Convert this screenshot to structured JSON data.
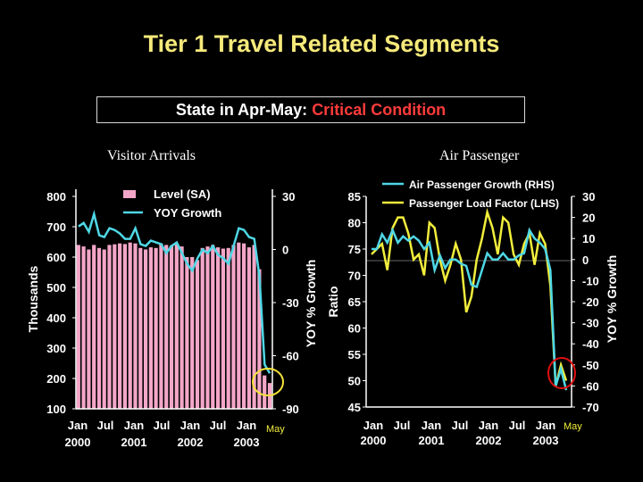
{
  "title": "Tier 1 Travel Related Segments",
  "state": {
    "prefix": "State in Apr-May:",
    "status": "Critical Condition",
    "status_color": "#ff3b3b"
  },
  "colors": {
    "bar": "#f4a6c8",
    "growth": "#4fd7e6",
    "factor": "#f2ee3c",
    "highlight_left": "#f5e23a",
    "highlight_right": "#e01010"
  },
  "chart_data": [
    {
      "type": "bar",
      "panel_title": "Visitor Arrivals",
      "legend": [
        "Level (SA)",
        "YOY Growth"
      ],
      "ylabel": "Thousands",
      "y2label": "YOY % Growth",
      "ylim": [
        100,
        800
      ],
      "y2lim": [
        -90,
        30
      ],
      "yticks": [
        "800",
        "700",
        "600",
        "500",
        "400",
        "300",
        "200",
        "100"
      ],
      "y2ticks": [
        "30",
        "0",
        "-30",
        "-60",
        "-90"
      ],
      "xticks": [
        "Jan",
        "Jul",
        "Jan",
        "Jul",
        "Jan",
        "Jul",
        "Jan"
      ],
      "years": [
        "2000",
        "2001",
        "2002",
        "2003"
      ],
      "annotation": "May",
      "series": [
        {
          "name": "Level (SA)",
          "values": [
            640,
            635,
            625,
            640,
            630,
            625,
            640,
            642,
            645,
            643,
            648,
            645,
            630,
            625,
            632,
            630,
            645,
            640,
            638,
            642,
            635,
            600,
            600,
            590,
            630,
            635,
            640,
            632,
            628,
            630,
            640,
            648,
            645,
            632,
            640,
            560,
            210,
            185
          ]
        },
        {
          "name": "YOY Growth",
          "values": [
            13,
            15,
            10,
            20,
            8,
            7,
            12,
            11,
            9,
            6,
            6,
            12,
            3,
            2,
            5,
            4,
            3,
            -2,
            2,
            4,
            -2,
            -8,
            -12,
            -5,
            0,
            -2,
            2,
            -3,
            -5,
            -8,
            2,
            12,
            11,
            7,
            6,
            -15,
            -65,
            -70
          ]
        }
      ]
    },
    {
      "type": "line",
      "panel_title": "Air Passenger",
      "legend": [
        "Air Passenger Growth (RHS)",
        "Passenger Load Factor (LHS)"
      ],
      "ylabel": "Ratio",
      "y2label": "YOY % Growth",
      "ylim": [
        45,
        85
      ],
      "y2lim": [
        -70,
        30
      ],
      "yticks": [
        "85",
        "80",
        "75",
        "70",
        "65",
        "60",
        "55",
        "50",
        "45"
      ],
      "y2ticks": [
        "30",
        "20",
        "10",
        "0",
        "-10",
        "-20",
        "-30",
        "-40",
        "-50",
        "-60",
        "-70"
      ],
      "xticks": [
        "Jan",
        "Jul",
        "Jan",
        "Jul",
        "Jan",
        "Jul",
        "Jan"
      ],
      "years": [
        "2000",
        "2001",
        "2002",
        "2003"
      ],
      "annotation": "May",
      "series": [
        {
          "name": "Air Passenger Growth (RHS)",
          "values": [
            5,
            5,
            12,
            8,
            14,
            8,
            11,
            9,
            11,
            9,
            5,
            8,
            -5,
            2,
            -4,
            0,
            0,
            -2,
            -3,
            -12,
            -13,
            -5,
            3,
            0,
            0,
            3,
            0,
            0,
            2,
            3,
            14,
            10,
            8,
            5,
            -5,
            -60,
            -52,
            -62
          ]
        },
        {
          "name": "Passenger Load Factor (LHS)",
          "values": [
            74,
            75,
            76,
            71,
            79,
            81,
            81,
            78,
            73,
            74,
            70,
            80,
            79,
            73,
            69,
            72,
            76,
            73,
            63,
            66,
            73,
            77,
            82,
            79,
            74,
            81,
            80,
            74,
            72,
            76,
            78,
            72,
            78,
            76,
            68,
            49,
            53,
            50
          ]
        }
      ]
    }
  ]
}
